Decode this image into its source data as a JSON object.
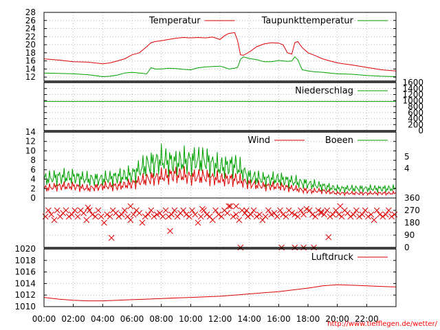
{
  "footer_url": "http://www.tiefflegen.de/wetter/",
  "colors": {
    "red": "#dd0000",
    "green": "#00a000",
    "grid": "#b0b0b0",
    "axis": "#000000"
  },
  "x_axis": {
    "range_hours": [
      0,
      24
    ],
    "tick_labels": [
      "00:00",
      "02:00",
      "04:00",
      "06:00",
      "08:00",
      "10:00",
      "12:00",
      "14:00",
      "16:00",
      "18:00",
      "20:00",
      "22:00"
    ]
  },
  "chart_data": [
    {
      "type": "line",
      "panel": "temperature",
      "ylim": [
        11,
        28
      ],
      "yticks": [
        12,
        14,
        16,
        18,
        20,
        22,
        24,
        26,
        28
      ],
      "grid": true,
      "legend_position": "top-right",
      "series": [
        {
          "name": "Temperatur",
          "color": "#dd0000",
          "x": [
            0,
            1,
            2,
            3,
            4,
            4.5,
            5,
            5.5,
            6,
            6.5,
            7,
            7.3,
            7.6,
            8,
            8.5,
            9,
            9.5,
            10,
            10.5,
            11,
            11.5,
            12,
            12.3,
            12.6,
            13,
            13.2,
            13.4,
            13.6,
            14,
            14.5,
            15,
            15.5,
            16,
            16.3,
            16.6,
            16.9,
            17.1,
            17.3,
            17.6,
            18,
            18.5,
            19,
            19.5,
            20,
            21,
            22,
            23,
            24
          ],
          "y": [
            16.5,
            16.2,
            15.8,
            15.7,
            15.3,
            15.5,
            16,
            16.5,
            17.5,
            18,
            19.5,
            20.5,
            20.8,
            21,
            21.3,
            21.6,
            21.8,
            21.7,
            21.8,
            21.7,
            21.9,
            21.3,
            22.2,
            22.8,
            23,
            21,
            17.5,
            17.4,
            18.2,
            19.5,
            20.2,
            20.5,
            20.4,
            20,
            18,
            17.7,
            20.5,
            20.8,
            19.3,
            18,
            17.3,
            16.5,
            16,
            15.5,
            15,
            14.4,
            13.8,
            13.5
          ]
        },
        {
          "name": "Taupunkttemperatur",
          "color": "#00a000",
          "x": [
            0,
            1,
            2,
            3,
            4,
            4.5,
            5,
            5.5,
            6,
            6.5,
            7,
            7.3,
            7.6,
            8,
            8.5,
            9,
            9.5,
            10,
            10.5,
            11,
            11.5,
            12,
            12.3,
            12.6,
            13,
            13.2,
            13.4,
            13.6,
            14,
            14.5,
            15,
            15.5,
            16,
            16.3,
            16.6,
            16.9,
            17.1,
            17.3,
            17.6,
            18,
            18.5,
            19,
            19.5,
            20,
            21,
            22,
            23,
            24
          ],
          "y": [
            13,
            12.9,
            12.8,
            12.6,
            12.1,
            12.2,
            12.5,
            13,
            13.2,
            13,
            12.8,
            14.3,
            14,
            14,
            14.2,
            14.1,
            13.9,
            13.8,
            14.3,
            14.5,
            14.6,
            14.7,
            14.4,
            14,
            14.2,
            14.4,
            16.4,
            17,
            16.6,
            16.3,
            15.8,
            15.8,
            16.1,
            16,
            15.9,
            16,
            17,
            16.3,
            13.8,
            13.5,
            13.3,
            13.2,
            13,
            12.8,
            12.7,
            12.4,
            12.2,
            12.1
          ]
        }
      ]
    },
    {
      "type": "line",
      "panel": "precipitation",
      "ylim": [
        0,
        1600
      ],
      "yticks": [
        0,
        200,
        400,
        600,
        800,
        1000,
        1200,
        1400,
        1600
      ],
      "grid": true,
      "legend_position": "top-right",
      "series": [
        {
          "name": "Niederschlag",
          "color": "#00a000",
          "x": [
            0,
            24
          ],
          "y": [
            970,
            970
          ]
        }
      ]
    },
    {
      "type": "line",
      "panel": "wind",
      "ylim": [
        0,
        14
      ],
      "yticks": [
        0,
        2,
        4,
        6,
        8,
        10,
        12,
        14
      ],
      "right_tick_labels": [
        "5",
        "4"
      ],
      "grid": true,
      "legend_position": "top-right",
      "series": [
        {
          "name": "Wind",
          "color": "#dd0000",
          "x": [
            0,
            1,
            2,
            3,
            4,
            5,
            6,
            7,
            8,
            9,
            10,
            11,
            12,
            13,
            14,
            15,
            16,
            17,
            18,
            19,
            20,
            21,
            22,
            23,
            24
          ],
          "y": [
            2,
            2.5,
            2.5,
            2,
            2.5,
            2.5,
            3,
            4,
            4.5,
            5,
            4.5,
            4.5,
            4,
            4,
            3,
            2.5,
            2.5,
            2,
            1.5,
            1.5,
            1,
            1,
            1,
            1,
            1
          ]
        },
        {
          "name": "Boeen",
          "color": "#00a000",
          "x": [
            0,
            1,
            2,
            3,
            4,
            5,
            6,
            7,
            8,
            9,
            10,
            11,
            12,
            13,
            14,
            15,
            16,
            17,
            18,
            19,
            20,
            21,
            22,
            23,
            24
          ],
          "y": [
            4,
            4.5,
            4.5,
            4,
            4,
            4.5,
            5,
            7,
            8,
            7.5,
            8,
            8,
            6.5,
            7,
            4.5,
            4,
            4,
            3.5,
            3,
            2.5,
            2,
            2,
            2,
            2,
            2
          ]
        }
      ]
    },
    {
      "type": "scatter",
      "panel": "wind_direction",
      "ylim": [
        0,
        360
      ],
      "right_tick_labels": [
        "360",
        "270",
        "180",
        "90",
        "0"
      ],
      "grid": true,
      "series": [
        {
          "name": "",
          "color": "#dd0000",
          "marker": "x",
          "x": [
            0.1,
            0.3,
            0.5,
            0.7,
            0.9,
            1.1,
            1.3,
            1.5,
            1.7,
            1.9,
            2.1,
            2.3,
            2.5,
            2.7,
            2.9,
            3.1,
            3.3,
            3.5,
            3.7,
            3.9,
            4.1,
            4.3,
            4.5,
            4.7,
            4.9,
            5.1,
            5.3,
            5.5,
            5.7,
            5.9,
            6.1,
            6.3,
            6.5,
            6.7,
            6.9,
            7.1,
            7.3,
            7.5,
            7.7,
            7.9,
            8.1,
            8.3,
            8.5,
            8.7,
            8.9,
            9.1,
            9.3,
            9.5,
            9.7,
            9.9,
            10.1,
            10.3,
            10.5,
            10.7,
            10.9,
            11.1,
            11.3,
            11.5,
            11.7,
            11.9,
            12.1,
            12.3,
            12.5,
            12.7,
            12.9,
            13.1,
            13.3,
            13.5,
            13.7,
            13.9,
            14.1,
            14.3,
            14.5,
            14.7,
            14.9,
            15.1,
            15.3,
            15.5,
            15.7,
            15.9,
            16.1,
            16.3,
            16.5,
            16.7,
            16.9,
            17.1,
            17.3,
            17.5,
            17.7,
            17.9,
            18.1,
            18.3,
            18.5,
            18.7,
            18.9,
            19.1,
            19.3,
            19.5,
            19.7,
            19.9,
            20.1,
            20.3,
            20.5,
            20.7,
            20.9,
            21.1,
            21.3,
            21.5,
            21.7,
            21.9,
            22.1,
            22.3,
            22.5,
            22.7,
            22.9,
            23.1,
            23.3,
            23.5,
            23.7,
            23.9,
            3.0,
            4.6,
            5.9,
            8.6,
            10.8,
            12.6,
            13.1,
            13.4,
            13.8,
            16.2,
            17.1,
            17.7,
            18.4,
            18.9,
            19.4,
            20.2
          ],
          "y": [
            225,
            270,
            240,
            200,
            270,
            225,
            250,
            270,
            225,
            240,
            270,
            225,
            270,
            250,
            200,
            270,
            240,
            225,
            270,
            225,
            180,
            240,
            225,
            270,
            250,
            225,
            240,
            270,
            225,
            200,
            240,
            270,
            250,
            180,
            225,
            240,
            270,
            225,
            240,
            250,
            225,
            270,
            225,
            240,
            270,
            225,
            250,
            270,
            240,
            225,
            270,
            240,
            180,
            225,
            270,
            240,
            225,
            200,
            270,
            240,
            225,
            270,
            250,
            300,
            225,
            240,
            200,
            270,
            250,
            225,
            240,
            270,
            225,
            240,
            200,
            225,
            270,
            240,
            250,
            225,
            270,
            240,
            225,
            270,
            250,
            240,
            225,
            270,
            240,
            280,
            270,
            240,
            225,
            270,
            250,
            240,
            270,
            225,
            240,
            270,
            240,
            225,
            270,
            250,
            225,
            240,
            270,
            225,
            240,
            270,
            225,
            240,
            200,
            270,
            240,
            225,
            240,
            270,
            225,
            240,
            290,
            70,
            300,
            120,
            280,
            300,
            300,
            0,
            270,
            0,
            0,
            0,
            0,
            260,
            75,
            300
          ]
        }
      ]
    },
    {
      "type": "line",
      "panel": "pressure",
      "ylim": [
        1010,
        1020
      ],
      "yticks": [
        1010,
        1012,
        1014,
        1016,
        1018,
        1020
      ],
      "grid": true,
      "legend_position": "top-right",
      "series": [
        {
          "name": "Luftdruck",
          "color": "#dd0000",
          "x": [
            0,
            1,
            2,
            3,
            4,
            5,
            6,
            7,
            8,
            9,
            10,
            11,
            12,
            13,
            14,
            15,
            16,
            17,
            18,
            19,
            20,
            21,
            22,
            23,
            24
          ],
          "y": [
            1011.6,
            1011.3,
            1011.1,
            1011.0,
            1011.0,
            1011.1,
            1011.2,
            1011.3,
            1011.4,
            1011.5,
            1011.6,
            1011.7,
            1011.8,
            1012.0,
            1012.2,
            1012.4,
            1012.6,
            1012.9,
            1013.2,
            1013.6,
            1013.8,
            1013.7,
            1013.6,
            1013.5,
            1013.4
          ]
        }
      ]
    }
  ]
}
